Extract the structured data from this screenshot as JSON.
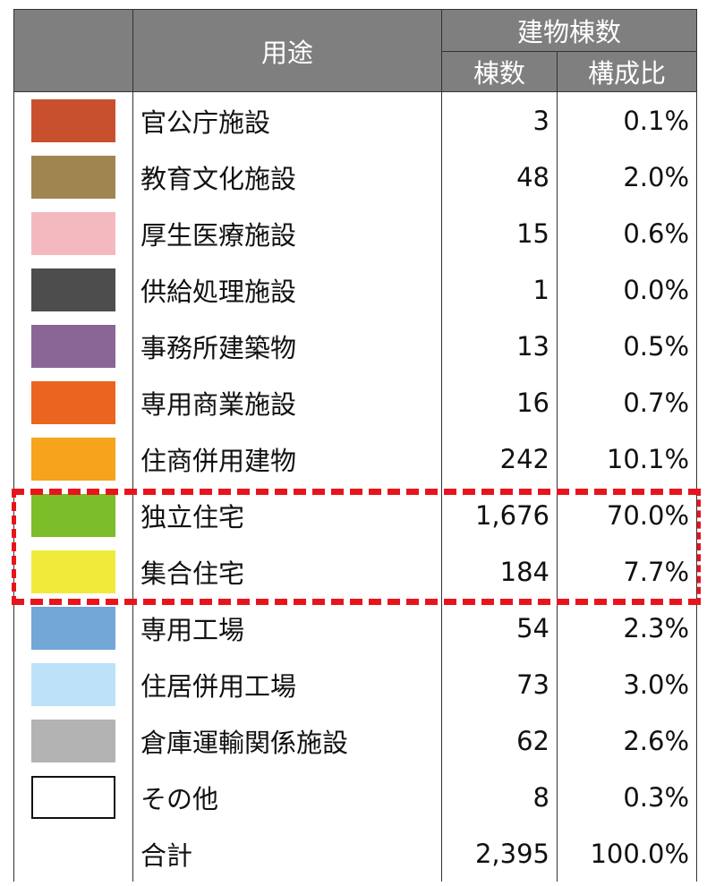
{
  "header": {
    "use": "用途",
    "buildings": "建物棟数",
    "count": "棟数",
    "ratio": "構成比"
  },
  "rows": [
    {
      "color": "#c9502f",
      "name": "官公庁施設",
      "count": "3",
      "ratio": "0.1%"
    },
    {
      "color": "#a18550",
      "name": "教育文化施設",
      "count": "48",
      "ratio": "2.0%"
    },
    {
      "color": "#f4b9bf",
      "name": "厚生医療施設",
      "count": "15",
      "ratio": "0.6%"
    },
    {
      "color": "#4d4d4d",
      "name": "供給処理施設",
      "count": "1",
      "ratio": "0.0%"
    },
    {
      "color": "#8a6697",
      "name": "事務所建築物",
      "count": "13",
      "ratio": "0.5%"
    },
    {
      "color": "#ea6520",
      "name": "専用商業施設",
      "count": "16",
      "ratio": "0.7%"
    },
    {
      "color": "#f5a41c",
      "name": "住商併用建物",
      "count": "242",
      "ratio": "10.1%"
    },
    {
      "color": "#7cbd2a",
      "name": "独立住宅",
      "count": "1,676",
      "ratio": "70.0%"
    },
    {
      "color": "#f0eb3a",
      "name": "集合住宅",
      "count": "184",
      "ratio": "7.7%"
    },
    {
      "color": "#72a7d8",
      "name": "専用工場",
      "count": "54",
      "ratio": "2.3%"
    },
    {
      "color": "#bde2f7",
      "name": "住居併用工場",
      "count": "73",
      "ratio": "3.0%"
    },
    {
      "color": "#b3b3b3",
      "name": "倉庫運輸関係施設",
      "count": "62",
      "ratio": "2.6%"
    },
    {
      "color": "#ffffff",
      "name": "その他",
      "count": "8",
      "ratio": "0.3%"
    }
  ],
  "total": {
    "name": "合計",
    "count": "2,395",
    "ratio": "100.0%"
  }
}
